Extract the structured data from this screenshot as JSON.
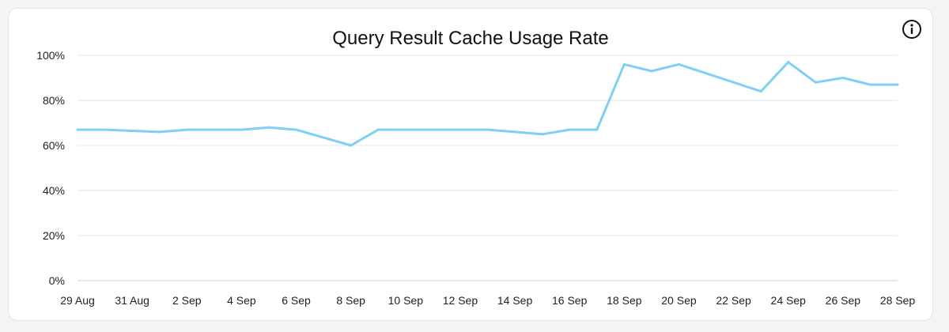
{
  "chart_data": {
    "type": "line",
    "title": "Query Result Cache Usage Rate",
    "xlabel": "",
    "ylabel": "",
    "ylim": [
      0,
      100
    ],
    "yticks": [
      "0%",
      "20%",
      "40%",
      "60%",
      "80%",
      "100%"
    ],
    "ytick_values": [
      0,
      20,
      40,
      60,
      80,
      100
    ],
    "xtick_labels": [
      "29 Aug",
      "31 Aug",
      "2 Sep",
      "4 Sep",
      "6 Sep",
      "8 Sep",
      "10 Sep",
      "12 Sep",
      "14 Sep",
      "16 Sep",
      "18 Sep",
      "20 Sep",
      "22 Sep",
      "24 Sep",
      "26 Sep",
      "28 Sep"
    ],
    "x": [
      "29 Aug",
      "30 Aug",
      "31 Aug",
      "1 Sep",
      "2 Sep",
      "3 Sep",
      "4 Sep",
      "5 Sep",
      "6 Sep",
      "7 Sep",
      "8 Sep",
      "9 Sep",
      "10 Sep",
      "11 Sep",
      "12 Sep",
      "13 Sep",
      "14 Sep",
      "15 Sep",
      "16 Sep",
      "17 Sep",
      "18 Sep",
      "19 Sep",
      "20 Sep",
      "21 Sep",
      "22 Sep",
      "23 Sep",
      "24 Sep",
      "25 Sep",
      "26 Sep",
      "27 Sep",
      "28 Sep"
    ],
    "series": [
      {
        "values": [
          67,
          67,
          66.5,
          66,
          67,
          67,
          67,
          68,
          67,
          63.5,
          60,
          67,
          67,
          67,
          67,
          67,
          66,
          65,
          67,
          67,
          96,
          93,
          96,
          92,
          88,
          84,
          97,
          88,
          90,
          87,
          87
        ],
        "color": "#7fcff7"
      }
    ],
    "grid": true,
    "legend": "none"
  },
  "icons": {
    "info": "info-icon"
  },
  "colors": {
    "line": "#7fcff7",
    "grid": "#e6e6e6",
    "axis": "#cfcfcf"
  }
}
